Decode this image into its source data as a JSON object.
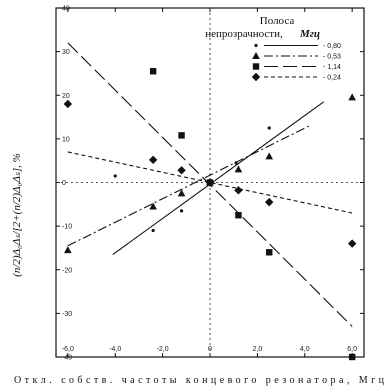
{
  "chart_data": {
    "type": "scatter",
    "title": "",
    "xlabel": "Откл. собств. частоты концевого резонатора, Мгц",
    "ylabel": "(n/2)Δ₀Δₛ/[2+(n/2)Δ₀Δₛ], %",
    "xlim": [
      -6.5,
      6.5
    ],
    "ylim": [
      -40,
      40
    ],
    "x_ticks": [
      "-6,0",
      "-4,0",
      "-2,0",
      "0",
      "2,0",
      "4,0",
      "6,0"
    ],
    "x_tick_values": [
      -6,
      -4,
      -2,
      0,
      2,
      4,
      6
    ],
    "y_ticks": [
      "40",
      "30",
      "20",
      "10",
      "0",
      "-10",
      "-20",
      "-30",
      "-40"
    ],
    "y_tick_values": [
      40,
      30,
      20,
      10,
      0,
      -10,
      -20,
      -30,
      -40
    ],
    "legend": {
      "title_line1": "Полоса",
      "title_line2": "непрозрачности,",
      "title_unit": "Мгц",
      "placement": "top-right"
    },
    "series": [
      {
        "name": "0,80",
        "marker": "dot",
        "line_style": "solid",
        "fit": [
          [
            -4.1,
            -16.5
          ],
          [
            4.8,
            18.5
          ]
        ],
        "points": [
          [
            -4.0,
            1.5
          ],
          [
            -2.4,
            -11
          ],
          [
            -1.2,
            -6.5
          ],
          [
            0,
            0
          ],
          [
            1.1,
            4.5
          ],
          [
            2.5,
            12.5
          ]
        ]
      },
      {
        "name": "0,53",
        "marker": "triangle",
        "line_style": "dash-dot",
        "fit": [
          [
            -6.0,
            -14.5
          ],
          [
            4.2,
            13
          ]
        ],
        "points": [
          [
            -6.0,
            -15.5
          ],
          [
            -2.4,
            -5.5
          ],
          [
            -1.2,
            -2.5
          ],
          [
            0,
            0
          ],
          [
            1.2,
            3
          ],
          [
            2.5,
            6
          ],
          [
            6.0,
            19.5
          ]
        ]
      },
      {
        "name": "1,14",
        "marker": "square",
        "line_style": "long-dash",
        "fit": [
          [
            -6.0,
            32
          ],
          [
            6.0,
            -33
          ]
        ],
        "points": [
          [
            -2.4,
            25.5
          ],
          [
            -1.2,
            10.8
          ],
          [
            0,
            0
          ],
          [
            1.2,
            -7.5
          ],
          [
            2.5,
            -16
          ],
          [
            6.0,
            -40
          ]
        ]
      },
      {
        "name": "0,24",
        "marker": "diamond",
        "line_style": "short-dash",
        "fit": [
          [
            -6.0,
            7
          ],
          [
            6.0,
            -7
          ]
        ],
        "points": [
          [
            -6.0,
            18
          ],
          [
            -2.4,
            5.2
          ],
          [
            -1.2,
            2.8
          ],
          [
            0,
            0
          ],
          [
            1.2,
            -1.8
          ],
          [
            2.5,
            -4.5
          ],
          [
            6.0,
            -14
          ]
        ]
      }
    ]
  }
}
